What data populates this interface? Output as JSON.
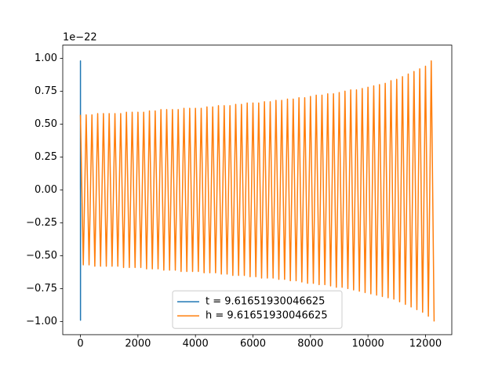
{
  "chart_data": {
    "type": "line",
    "y_offset_text": "1e−22",
    "xlim": [
      -615,
      12915
    ],
    "xticks": [
      0,
      2000,
      4000,
      6000,
      8000,
      10000,
      12000
    ],
    "ylim": [
      -1.1,
      1.1
    ],
    "yticks": [
      {
        "value": -1,
        "label": "−1.00"
      },
      {
        "value": -0.75,
        "label": "−0.75"
      },
      {
        "value": -0.5,
        "label": "−0.50"
      },
      {
        "value": -0.25,
        "label": "−0.25"
      },
      {
        "value": 0,
        "label": "0.00"
      },
      {
        "value": 0.25,
        "label": "0.25"
      },
      {
        "value": 0.5,
        "label": "0.50"
      },
      {
        "value": 0.75,
        "label": "0.75"
      },
      {
        "value": 1,
        "label": "1.00"
      }
    ],
    "legend": "lower center",
    "series": [
      {
        "name": "t = 9.61651930046625",
        "color": "#1f77b4",
        "x": [
          0,
          1,
          2,
          3
        ],
        "values": [
          0,
          0.98,
          -0.99,
          -0.1
        ]
      },
      {
        "name": "h = 9.61651930046625",
        "color": "#ff7f0e",
        "x": [
          0,
          100,
          200,
          300,
          400,
          500,
          600,
          700,
          800,
          900,
          1000,
          1100,
          1200,
          1300,
          1400,
          1500,
          1600,
          1700,
          1800,
          1900,
          2000,
          2100,
          2200,
          2300,
          2400,
          2500,
          2600,
          2700,
          2800,
          2900,
          3000,
          3100,
          3200,
          3300,
          3400,
          3500,
          3600,
          3700,
          3800,
          3900,
          4000,
          4100,
          4200,
          4300,
          4400,
          4500,
          4600,
          4700,
          4800,
          4900,
          5000,
          5100,
          5200,
          5300,
          5400,
          5500,
          5600,
          5700,
          5800,
          5900,
          6000,
          6100,
          6200,
          6300,
          6400,
          6500,
          6600,
          6700,
          6800,
          6900,
          7000,
          7100,
          7200,
          7300,
          7400,
          7500,
          7600,
          7700,
          7800,
          7900,
          8000,
          8100,
          8200,
          8300,
          8400,
          8500,
          8600,
          8700,
          8800,
          8900,
          9000,
          9100,
          9200,
          9300,
          9400,
          9500,
          9600,
          9700,
          9800,
          9900,
          10000,
          10100,
          10200,
          10300,
          10400,
          10500,
          10600,
          10700,
          10800,
          10900,
          11000,
          11100,
          11200,
          11300,
          11400,
          11500,
          11600,
          11700,
          11800,
          11900,
          12000,
          12100,
          12200,
          12300
        ],
        "values": [
          0.57,
          -0.57,
          0.57,
          -0.57,
          0.57,
          -0.58,
          0.58,
          -0.58,
          0.58,
          -0.58,
          0.58,
          -0.58,
          0.58,
          -0.58,
          0.58,
          -0.59,
          0.59,
          -0.59,
          0.59,
          -0.59,
          0.59,
          -0.59,
          0.59,
          -0.6,
          0.6,
          -0.6,
          0.6,
          -0.6,
          0.61,
          -0.61,
          0.61,
          -0.61,
          0.61,
          -0.61,
          0.61,
          -0.62,
          0.62,
          -0.62,
          0.62,
          -0.62,
          0.62,
          -0.62,
          0.62,
          -0.63,
          0.63,
          -0.63,
          0.63,
          -0.63,
          0.64,
          -0.64,
          0.64,
          -0.64,
          0.64,
          -0.65,
          0.65,
          -0.65,
          0.65,
          -0.65,
          0.66,
          -0.66,
          0.66,
          -0.66,
          0.66,
          -0.67,
          0.67,
          -0.67,
          0.67,
          -0.67,
          0.68,
          -0.68,
          0.68,
          -0.68,
          0.69,
          -0.69,
          0.69,
          -0.69,
          0.7,
          -0.7,
          0.7,
          -0.71,
          0.71,
          -0.71,
          0.72,
          -0.72,
          0.72,
          -0.72,
          0.73,
          -0.73,
          0.73,
          -0.74,
          0.74,
          -0.74,
          0.75,
          -0.75,
          0.76,
          -0.76,
          0.76,
          -0.77,
          0.77,
          -0.78,
          0.78,
          -0.79,
          0.79,
          -0.8,
          0.8,
          -0.81,
          0.81,
          -0.82,
          0.83,
          -0.83,
          0.84,
          -0.85,
          0.86,
          -0.87,
          0.88,
          -0.89,
          0.9,
          -0.91,
          0.92,
          -0.93,
          0.94,
          -0.96,
          0.98,
          -1.0
        ]
      }
    ]
  }
}
